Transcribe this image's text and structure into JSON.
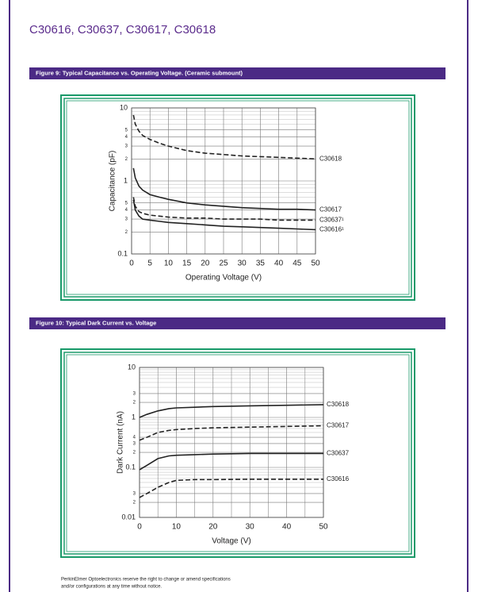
{
  "header": {
    "title": "C30616, C30637, C30617, C30618"
  },
  "chart_data": [
    {
      "type": "line",
      "title": "Figure 9: Typical Capacitance vs. Operating Voltage.  (Ceramic submount)",
      "x_label": "Operating Voltage (V)",
      "y_label": "Capacitance (pF)",
      "x": [
        0.5,
        1,
        2,
        3,
        5,
        7.5,
        10,
        15,
        20,
        25,
        30,
        35,
        40,
        45,
        50
      ],
      "series": [
        {
          "name": "C30618",
          "color": "#222222",
          "dash": true,
          "values": [
            8,
            6,
            4.8,
            4.2,
            3.7,
            3.3,
            3.0,
            2.6,
            2.4,
            2.3,
            2.2,
            2.15,
            2.1,
            2.05,
            2.0
          ]
        },
        {
          "name": "C30617",
          "color": "#222222",
          "dash": false,
          "values": [
            1.5,
            1.1,
            0.85,
            0.75,
            0.65,
            0.6,
            0.56,
            0.5,
            0.47,
            0.45,
            0.43,
            0.42,
            0.41,
            0.41,
            0.4
          ]
        },
        {
          "name": "C30637¹",
          "color": "#222222",
          "dash": true,
          "values": [
            0.6,
            0.45,
            0.38,
            0.36,
            0.34,
            0.33,
            0.32,
            0.31,
            0.31,
            0.3,
            0.3,
            0.3,
            0.29,
            0.29,
            0.29
          ]
        },
        {
          "name": "C30616¹",
          "color": "#222222",
          "dash": false,
          "values": [
            0.55,
            0.4,
            0.33,
            0.3,
            0.29,
            0.28,
            0.27,
            0.26,
            0.25,
            0.24,
            0.235,
            0.23,
            0.225,
            0.22,
            0.215
          ]
        }
      ],
      "xlim": [
        0,
        50
      ],
      "xticks": [
        0,
        5,
        10,
        15,
        20,
        25,
        30,
        35,
        40,
        45,
        50
      ],
      "xminor": [],
      "ylim": [
        0.1,
        10
      ],
      "ylog": true,
      "grid": true,
      "yticks": [
        0.1,
        {
          "value": 0.2,
          "label": "2"
        },
        {
          "value": 0.3,
          "label": "3"
        },
        {
          "value": 0.4,
          "label": "4"
        },
        {
          "value": 0.5,
          "label": "5"
        },
        1,
        {
          "value": 2,
          "label": "2"
        },
        {
          "value": 3,
          "label": "3"
        },
        {
          "value": 4,
          "label": "4"
        },
        {
          "value": 5,
          "label": "5"
        },
        10
      ],
      "yminor": [
        0.6,
        0.7,
        0.8,
        0.9,
        6,
        7,
        8,
        9
      ]
    },
    {
      "type": "line",
      "title": "Figure 10:   Typical Dark Current vs. Voltage",
      "x_label": "Voltage (V)",
      "y_label": "Dark Current (nA)",
      "x": [
        0,
        2,
        5,
        8,
        10,
        15,
        20,
        30,
        40,
        50
      ],
      "series": [
        {
          "name": "C30618",
          "color": "#222222",
          "dash": false,
          "values": [
            1,
            1.15,
            1.35,
            1.5,
            1.55,
            1.6,
            1.65,
            1.7,
            1.75,
            1.8
          ]
        },
        {
          "name": "C30617",
          "color": "#222222",
          "dash": true,
          "values": [
            0.35,
            0.4,
            0.5,
            0.55,
            0.57,
            0.6,
            0.62,
            0.64,
            0.66,
            0.68
          ]
        },
        {
          "name": "C30637",
          "color": "#222222",
          "dash": false,
          "values": [
            0.09,
            0.11,
            0.15,
            0.17,
            0.175,
            0.18,
            0.185,
            0.19,
            0.19,
            0.19
          ]
        },
        {
          "name": "C30616",
          "color": "#222222",
          "dash": true,
          "values": [
            0.025,
            0.03,
            0.04,
            0.05,
            0.055,
            0.057,
            0.057,
            0.058,
            0.058,
            0.058
          ]
        }
      ],
      "xlim": [
        0,
        50
      ],
      "xticks": [
        0,
        10,
        20,
        30,
        40,
        50
      ],
      "xminor": [
        5,
        15,
        25,
        35,
        45
      ],
      "ylim": [
        0.01,
        10
      ],
      "ylog": true,
      "grid": true,
      "yticks": [
        0.01,
        {
          "value": 0.02,
          "label": "2"
        },
        {
          "value": 0.03,
          "label": "3"
        },
        0.1,
        {
          "value": 0.2,
          "label": "2"
        },
        {
          "value": 0.3,
          "label": "3"
        },
        {
          "value": 0.4,
          "label": "4"
        },
        1,
        {
          "value": 2,
          "label": "2"
        },
        {
          "value": 3,
          "label": "3"
        },
        10
      ],
      "yminor": [
        0.04,
        0.05,
        0.06,
        0.07,
        0.08,
        0.09,
        0.5,
        0.6,
        0.7,
        0.8,
        0.9,
        4,
        5,
        6,
        7,
        8,
        9
      ]
    }
  ],
  "footer": {
    "lines": [
      "PerkinElmer Optoelectronics reserve the right to change or amend specifications",
      "and/or configurations at any time without notice."
    ]
  }
}
